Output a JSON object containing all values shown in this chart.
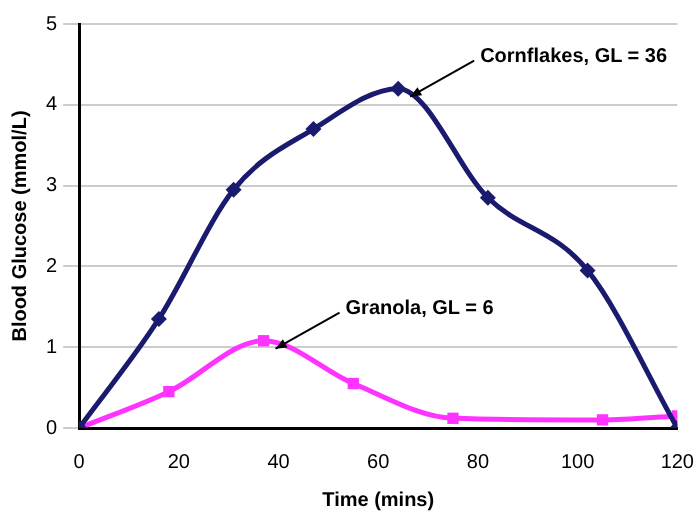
{
  "chart_data": {
    "type": "line",
    "xlabel": "Time (mins)",
    "ylabel": "Blood Glucose (mmol/L)",
    "series": [
      {
        "color": "#1a1a6e",
        "marker": "diamond",
        "x": [
          0,
          16,
          31,
          47,
          64,
          82,
          102,
          120
        ],
        "values": [
          0,
          1.35,
          2.95,
          3.7,
          4.2,
          2.85,
          1.95,
          0
        ]
      },
      {
        "color": "#ff33ff",
        "marker": "square",
        "x": [
          0,
          18,
          37,
          55,
          75,
          105,
          120
        ],
        "values": [
          0,
          0.45,
          1.08,
          0.55,
          0.12,
          0.1,
          0.15
        ]
      }
    ],
    "xlim": [
      0,
      120
    ],
    "xticks": [
      0,
      20,
      40,
      60,
      80,
      100,
      120
    ],
    "ylim": [
      0,
      5
    ],
    "yticks": [
      0,
      1,
      2,
      3,
      4,
      5
    ],
    "grid": "y",
    "legend": false,
    "annotations": [
      {
        "text": "Cornflakes, GL = 36",
        "x": 64,
        "y": 4.2
      },
      {
        "text": "Granola, GL = 6",
        "x": 37,
        "y": 1.08
      }
    ]
  }
}
